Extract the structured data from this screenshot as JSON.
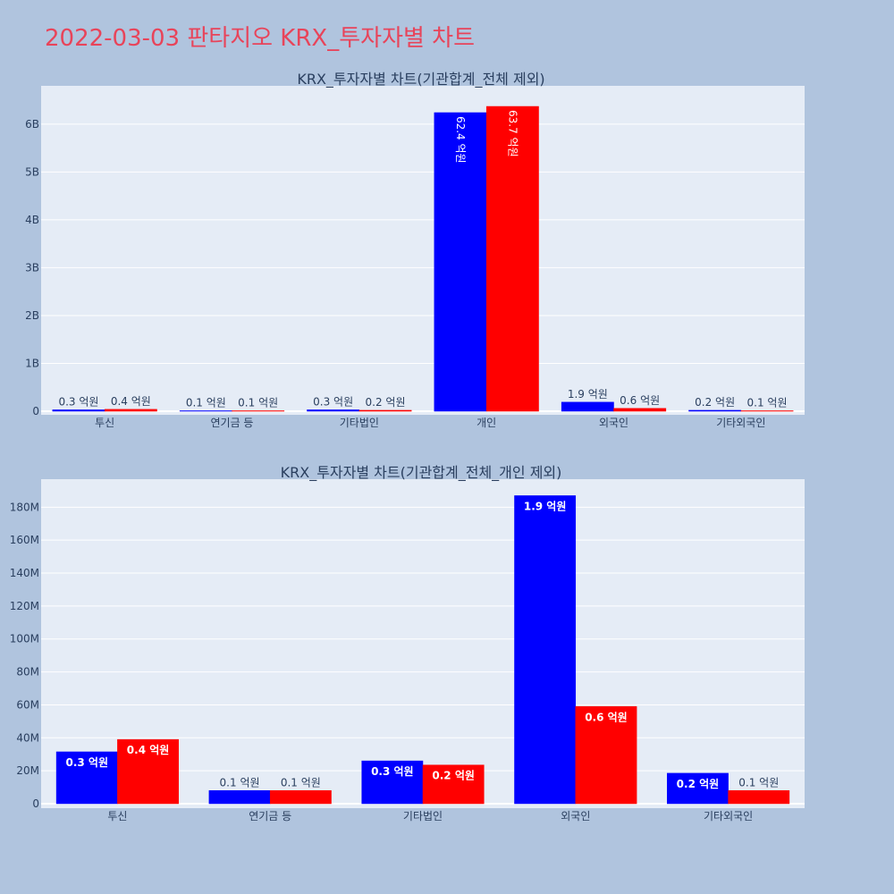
{
  "page": {
    "title": "2022-03-03 판타지오 KRX_투자자별 차트"
  },
  "colors": {
    "buy": "#0000ff",
    "sell": "#ff0000",
    "plot_bg": "#e5ecf6",
    "page_bg": "#b0c4de",
    "title": "#e8445a"
  },
  "chart_data": [
    {
      "type": "bar",
      "title": "KRX_투자자별 차트(기관합계_전체 제외)",
      "categories": [
        "투신",
        "연기금 등",
        "기타법인",
        "개인",
        "외국인",
        "기타외국인"
      ],
      "series": [
        {
          "values": [
            30000000,
            10000000,
            30000000,
            6240000000,
            190000000,
            20000000
          ],
          "labels": [
            "0.3 억원",
            "0.1 억원",
            "0.3 억원",
            "62.4 억원",
            "1.9 억원",
            "0.2 억원"
          ]
        },
        {
          "values": [
            40000000,
            10000000,
            20000000,
            6370000000,
            60000000,
            10000000
          ],
          "labels": [
            "0.4 억원",
            "0.1 억원",
            "0.2 억원",
            "63.7 억원",
            "0.6 억원",
            "0.1 억원"
          ]
        }
      ],
      "ylim": [
        0,
        6800000000
      ],
      "yticks": [
        0,
        1000000000,
        2000000000,
        3000000000,
        4000000000,
        5000000000,
        6000000000
      ],
      "ytick_labels": [
        "0",
        "1B",
        "2B",
        "3B",
        "4B",
        "5B",
        "6B"
      ],
      "grid": true,
      "xlabel": "",
      "ylabel": ""
    },
    {
      "type": "bar",
      "title": "KRX_투자자별 차트(기관합계_전체_개인 제외)",
      "categories": [
        "투신",
        "연기금 등",
        "기타법인",
        "외국인",
        "기타외국인"
      ],
      "series": [
        {
          "values": [
            31500000,
            8000000,
            26000000,
            187000000,
            18500000
          ],
          "labels": [
            "0.3 억원",
            "0.1 억원",
            "0.3 억원",
            "1.9 억원",
            "0.2 억원"
          ]
        },
        {
          "values": [
            39000000,
            8000000,
            23500000,
            59000000,
            8000000
          ],
          "labels": [
            "0.4 억원",
            "0.1 억원",
            "0.2 억원",
            "0.6 억원",
            "0.1 억원"
          ]
        }
      ],
      "ylim": [
        0,
        197000000
      ],
      "yticks": [
        0,
        20000000,
        40000000,
        60000000,
        80000000,
        100000000,
        120000000,
        140000000,
        160000000,
        180000000
      ],
      "ytick_labels": [
        "0",
        "20M",
        "40M",
        "60M",
        "80M",
        "100M",
        "120M",
        "140M",
        "160M",
        "180M"
      ],
      "grid": true,
      "xlabel": "",
      "ylabel": ""
    }
  ]
}
